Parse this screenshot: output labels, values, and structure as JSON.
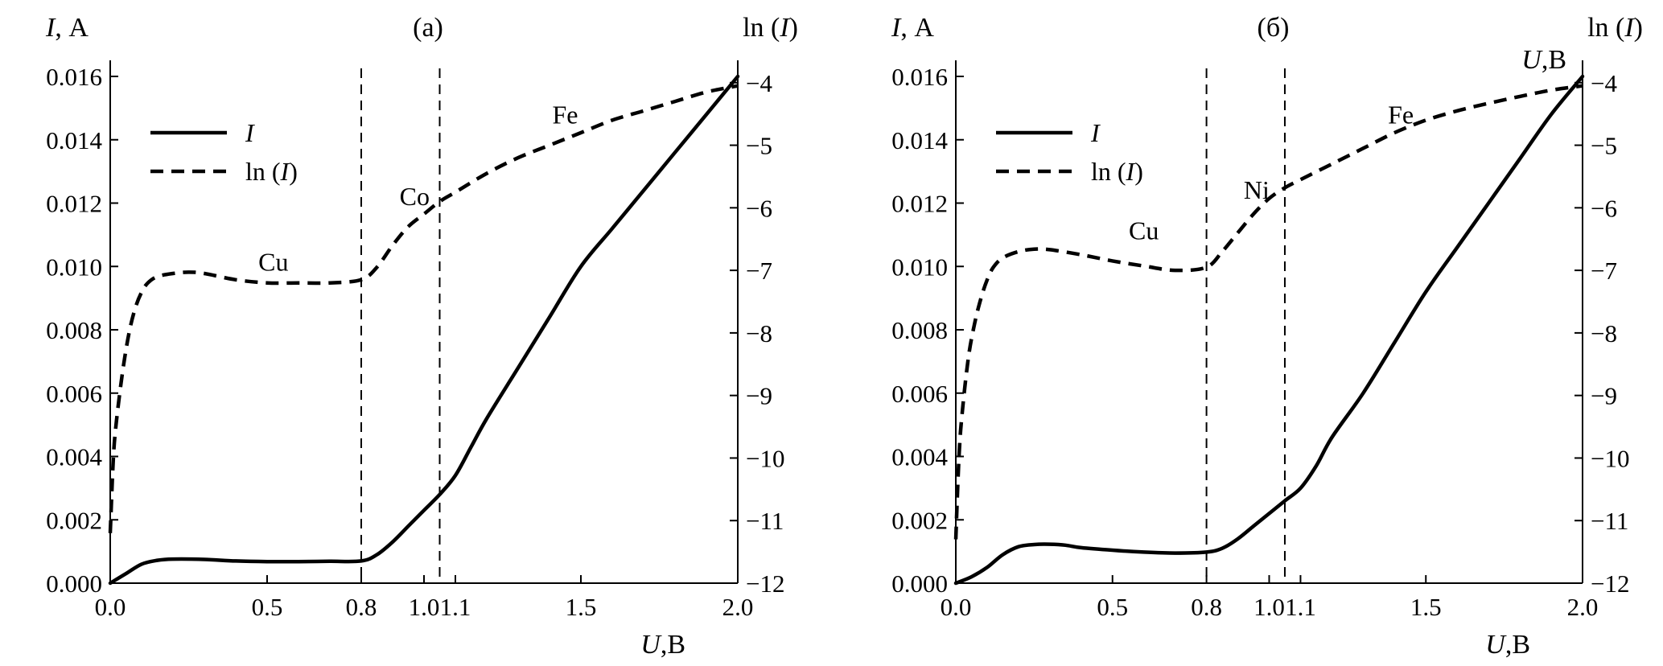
{
  "chart_data": [
    {
      "type": "line",
      "title": "(a)",
      "xlabel_var": "U",
      "xlabel_unit": ",В",
      "ylabel_left_var": "I",
      "ylabel_left_unit": ", А",
      "ylabel_right_pre": "ln (",
      "ylabel_right_var": "I",
      "ylabel_right_post": ")",
      "xlim": [
        0,
        2
      ],
      "ylim_left": [
        0,
        0.016
      ],
      "ylim_right": [
        -12,
        -3.9
      ],
      "x_ticks": [
        0.0,
        0.5,
        0.8,
        1.0,
        1.1,
        1.5,
        2.0
      ],
      "x_tick_labels": [
        "0.0",
        "0.5",
        "0.8",
        "1.0",
        "1.1",
        "1.5",
        "2.0"
      ],
      "y_left_ticks": [
        0,
        0.002,
        0.004,
        0.006,
        0.008,
        0.01,
        0.012,
        0.014,
        0.016
      ],
      "y_left_tick_labels": [
        "0.000",
        "0.002",
        "0.004",
        "0.006",
        "0.008",
        "0.010",
        "0.012",
        "0.014",
        "0.016"
      ],
      "y_right_ticks": [
        -12,
        -11,
        -10,
        -9,
        -8,
        -7,
        -6,
        -5,
        -4
      ],
      "y_right_tick_labels": [
        "−12",
        "−11",
        "−10",
        "−9",
        "−8",
        "−7",
        "−6",
        "−5",
        "−4"
      ],
      "vlines": [
        0.8,
        1.05
      ],
      "legend": {
        "position": "upper-left",
        "entries": [
          {
            "pre": "",
            "var": "I",
            "post": "",
            "style": "solid"
          },
          {
            "pre": "ln (",
            "var": "I",
            "post": ")",
            "style": "dashed"
          }
        ]
      },
      "annotations": [
        {
          "text": "Cu",
          "x": 0.52,
          "y_right": -6.85
        },
        {
          "text": "Co",
          "x": 0.97,
          "y_right": -5.8
        },
        {
          "text": "Fe",
          "x": 1.45,
          "y_right": -4.5
        }
      ],
      "series": [
        {
          "name": "I",
          "axis": "left",
          "style": "solid",
          "x": [
            0.0,
            0.05,
            0.1,
            0.15,
            0.2,
            0.3,
            0.4,
            0.5,
            0.6,
            0.7,
            0.8,
            0.85,
            0.9,
            0.95,
            1.0,
            1.05,
            1.1,
            1.15,
            1.2,
            1.3,
            1.4,
            1.5,
            1.6,
            1.7,
            1.8,
            1.9,
            2.0
          ],
          "y": [
            0.0,
            0.0003,
            0.0006,
            0.00072,
            0.00076,
            0.00075,
            0.0007,
            0.00068,
            0.00068,
            0.00069,
            0.0007,
            0.0009,
            0.0013,
            0.0018,
            0.0023,
            0.0028,
            0.0034,
            0.0043,
            0.0052,
            0.0068,
            0.0084,
            0.01,
            0.0112,
            0.0124,
            0.0136,
            0.0148,
            0.016
          ]
        },
        {
          "name": "ln (I)",
          "axis": "right",
          "style": "dashed",
          "x": [
            0.0,
            0.01,
            0.02,
            0.04,
            0.06,
            0.08,
            0.1,
            0.12,
            0.15,
            0.2,
            0.25,
            0.3,
            0.4,
            0.5,
            0.6,
            0.7,
            0.8,
            0.85,
            0.9,
            0.95,
            1.0,
            1.05,
            1.1,
            1.2,
            1.3,
            1.4,
            1.5,
            1.6,
            1.7,
            1.8,
            1.9,
            2.0
          ],
          "y": [
            -11.2,
            -10.0,
            -9.4,
            -8.6,
            -8.0,
            -7.6,
            -7.35,
            -7.2,
            -7.1,
            -7.05,
            -7.03,
            -7.05,
            -7.15,
            -7.2,
            -7.2,
            -7.2,
            -7.15,
            -6.95,
            -6.6,
            -6.3,
            -6.1,
            -5.9,
            -5.75,
            -5.45,
            -5.2,
            -5.0,
            -4.8,
            -4.6,
            -4.45,
            -4.3,
            -4.15,
            -4.05
          ]
        }
      ]
    },
    {
      "type": "line",
      "title": "(б)",
      "xlabel_var": "U",
      "xlabel_unit": ",В",
      "corner_label_var": "U",
      "corner_label_unit": ",В",
      "ylabel_left_var": "I",
      "ylabel_left_unit": ", А",
      "ylabel_right_pre": "ln (",
      "ylabel_right_var": "I",
      "ylabel_right_post": ")",
      "xlim": [
        0,
        2
      ],
      "ylim_left": [
        0,
        0.016
      ],
      "ylim_right": [
        -12,
        -3.9
      ],
      "x_ticks": [
        0.0,
        0.5,
        0.8,
        1.0,
        1.1,
        1.5,
        2.0
      ],
      "x_tick_labels": [
        "0.0",
        "0.5",
        "0.8",
        "1.0",
        "1.1",
        "1.5",
        "2.0"
      ],
      "y_left_ticks": [
        0,
        0.002,
        0.004,
        0.006,
        0.008,
        0.01,
        0.012,
        0.014,
        0.016
      ],
      "y_left_tick_labels": [
        "0.000",
        "0.002",
        "0.004",
        "0.006",
        "0.008",
        "0.010",
        "0.012",
        "0.014",
        "0.016"
      ],
      "y_right_ticks": [
        -12,
        -11,
        -10,
        -9,
        -8,
        -7,
        -6,
        -5,
        -4
      ],
      "y_right_tick_labels": [
        "−12",
        "−11",
        "−10",
        "−9",
        "−8",
        "−7",
        "−6",
        "−5",
        "−4"
      ],
      "vlines": [
        0.8,
        1.05
      ],
      "legend": {
        "position": "upper-left",
        "entries": [
          {
            "pre": "",
            "var": "I",
            "post": "",
            "style": "solid"
          },
          {
            "pre": "ln (",
            "var": "I",
            "post": ")",
            "style": "dashed"
          }
        ]
      },
      "annotations": [
        {
          "text": "Cu",
          "x": 0.6,
          "y_right": -6.35
        },
        {
          "text": "Ni",
          "x": 0.96,
          "y_right": -5.7
        },
        {
          "text": "Fe",
          "x": 1.42,
          "y_right": -4.5
        }
      ],
      "series": [
        {
          "name": "I",
          "axis": "left",
          "style": "solid",
          "x": [
            0.0,
            0.05,
            0.1,
            0.15,
            0.2,
            0.25,
            0.3,
            0.35,
            0.4,
            0.5,
            0.6,
            0.7,
            0.8,
            0.85,
            0.9,
            0.95,
            1.0,
            1.05,
            1.1,
            1.15,
            1.2,
            1.3,
            1.4,
            1.5,
            1.6,
            1.7,
            1.8,
            1.9,
            2.0
          ],
          "y": [
            0.0,
            0.0002,
            0.0005,
            0.0009,
            0.00115,
            0.00122,
            0.00123,
            0.0012,
            0.00112,
            0.00104,
            0.00098,
            0.00095,
            0.00098,
            0.0011,
            0.0014,
            0.0018,
            0.0022,
            0.0026,
            0.003,
            0.0037,
            0.0046,
            0.006,
            0.0076,
            0.0092,
            0.0106,
            0.012,
            0.0134,
            0.0148,
            0.016
          ]
        },
        {
          "name": "ln (I)",
          "axis": "right",
          "style": "dashed",
          "x": [
            0.0,
            0.01,
            0.02,
            0.04,
            0.06,
            0.08,
            0.1,
            0.12,
            0.15,
            0.2,
            0.25,
            0.3,
            0.4,
            0.5,
            0.6,
            0.7,
            0.8,
            0.85,
            0.9,
            0.95,
            1.0,
            1.05,
            1.1,
            1.2,
            1.3,
            1.4,
            1.5,
            1.6,
            1.7,
            1.8,
            1.9,
            2.0
          ],
          "y": [
            -11.3,
            -10.0,
            -9.3,
            -8.4,
            -7.85,
            -7.45,
            -7.15,
            -6.95,
            -6.8,
            -6.7,
            -6.66,
            -6.67,
            -6.75,
            -6.85,
            -6.93,
            -7.0,
            -6.95,
            -6.7,
            -6.4,
            -6.1,
            -5.85,
            -5.68,
            -5.55,
            -5.3,
            -5.05,
            -4.8,
            -4.6,
            -4.45,
            -4.33,
            -4.22,
            -4.12,
            -4.05
          ]
        }
      ]
    }
  ]
}
